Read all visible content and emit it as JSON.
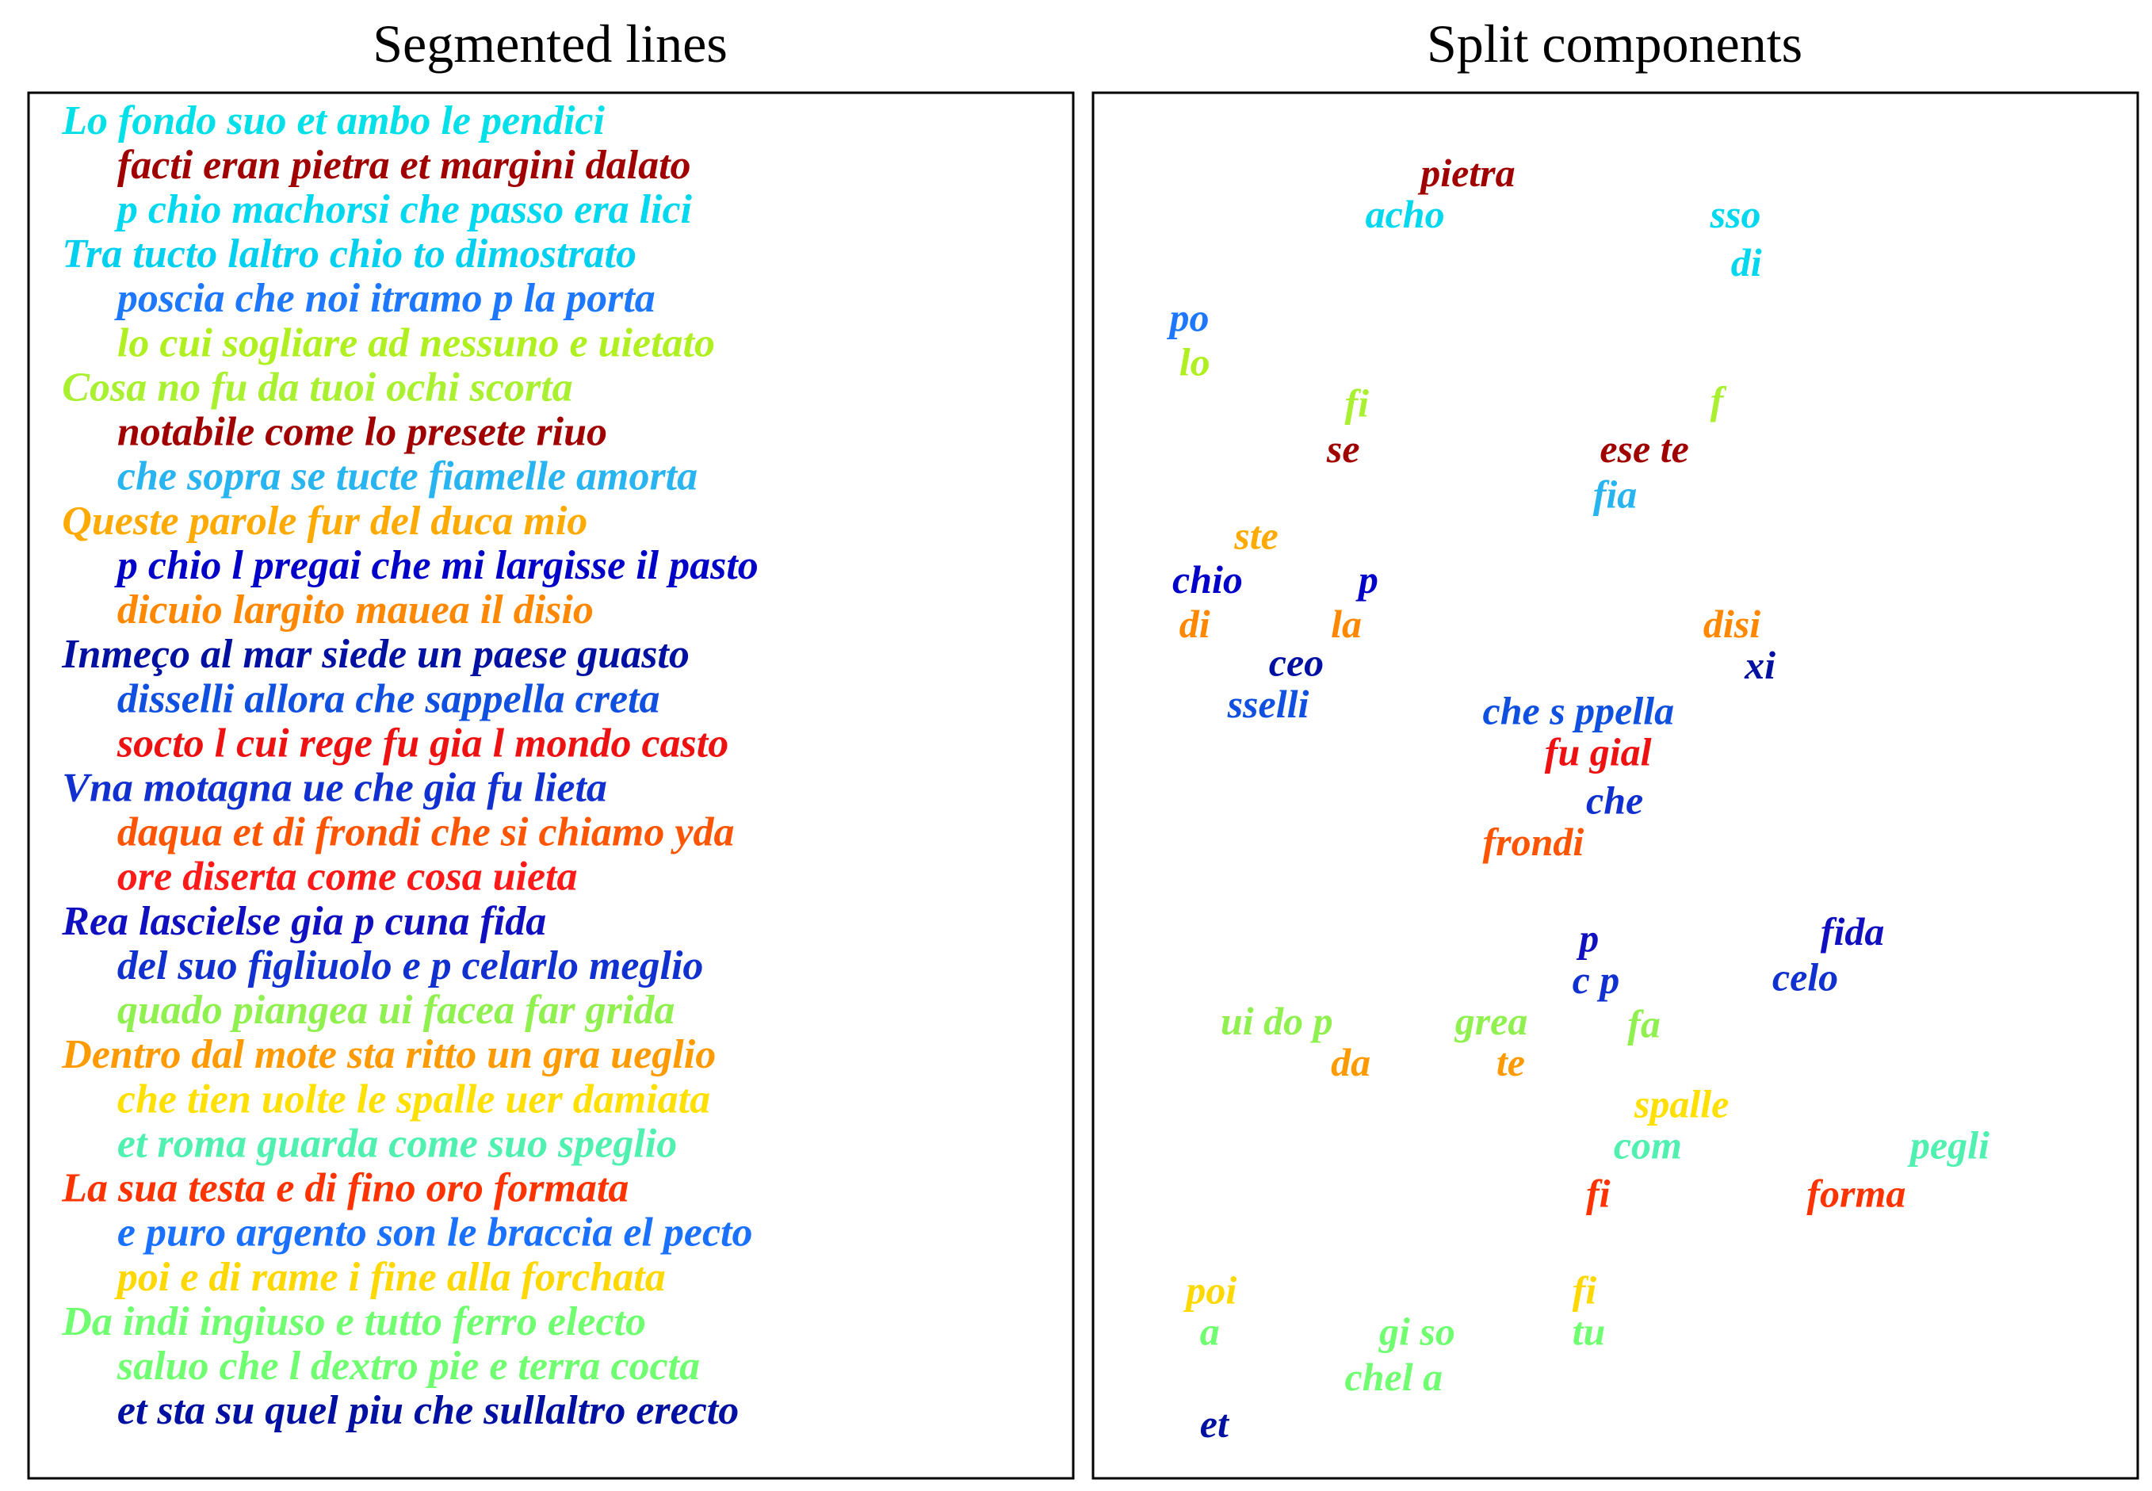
{
  "left": {
    "title": "Segmented lines",
    "lines": [
      {
        "text": "Lo fondo suo et ambo le pendici",
        "color": "#00e0e8"
      },
      {
        "text": "facti eran pietra et margini dalato",
        "color": "#a00000"
      },
      {
        "text": "p chio machorsi che passo era lici",
        "color": "#00d8f0"
      },
      {
        "text": "Tra tucto laltro chio to dimostrato",
        "color": "#00d0f0"
      },
      {
        "text": "poscia che noi itramo p la porta",
        "color": "#1e78ff"
      },
      {
        "text": "lo cui sogliare ad nessuno e uietato",
        "color": "#b0f020"
      },
      {
        "text": "Cosa no fu da tuoi ochi scorta",
        "color": "#a8f030"
      },
      {
        "text": "notabile come lo presete riuo",
        "color": "#a00000"
      },
      {
        "text": "che sopra se tucte fiamelle amorta",
        "color": "#28b4f0"
      },
      {
        "text": "Queste parole fur del duca mio",
        "color": "#ffaa00"
      },
      {
        "text": "p chio l pregai che mi largisse il pasto",
        "color": "#0000c8"
      },
      {
        "text": "dicuio largito mauea il disio",
        "color": "#ff8800"
      },
      {
        "text": "Inmeço al mar siede un paese guasto",
        "color": "#0010a0"
      },
      {
        "text": "disselli allora che sappella creta",
        "color": "#1050e0"
      },
      {
        "text": "socto l cui rege fu gia l mondo casto",
        "color": "#ee1111"
      },
      {
        "text": "Vna motagna ue che gia fu lieta",
        "color": "#1030d0"
      },
      {
        "text": "daqua et di frondi che si chiamo yda",
        "color": "#ff5500"
      },
      {
        "text": "ore diserta come cosa uieta",
        "color": "#ff1a1a"
      },
      {
        "text": "Rea lascielse gia p cuna fida",
        "color": "#1010c0"
      },
      {
        "text": "del suo figliuolo e p celarlo meglio",
        "color": "#1030d0"
      },
      {
        "text": "quado piangea ui facea far grida",
        "color": "#90f050"
      },
      {
        "text": "Dentro dal mote sta ritto un gra ueglio",
        "color": "#ff9a00"
      },
      {
        "text": "che tien uolte le spalle uer damiata",
        "color": "#ffe000"
      },
      {
        "text": "et roma guarda come suo speglio",
        "color": "#50f0b0"
      },
      {
        "text": "La sua testa e di fino oro formata",
        "color": "#ff3300"
      },
      {
        "text": "e puro argento son le braccia el pecto",
        "color": "#1a70ff"
      },
      {
        "text": "poi e di rame i fine alla forchata",
        "color": "#ffd800"
      },
      {
        "text": "Da indi ingiuso e tutto ferro electo",
        "color": "#70ff70"
      },
      {
        "text": "saluo che l dextro pie e terra cocta",
        "color": "#70ff70"
      },
      {
        "text": "et sta su quel piu che sullaltro erecto",
        "color": "#0010a0"
      }
    ]
  },
  "right": {
    "title": "Split components",
    "components": [
      {
        "text": "pietra",
        "color": "#a00000"
      },
      {
        "text": "acho",
        "color": "#00d8f0"
      },
      {
        "text": "sso",
        "color": "#00d8f0"
      },
      {
        "text": "di",
        "color": "#00d8f0"
      },
      {
        "text": "po",
        "color": "#1e78ff"
      },
      {
        "text": "lo",
        "color": "#b0f020"
      },
      {
        "text": "fi",
        "color": "#a8f030"
      },
      {
        "text": "f",
        "color": "#a8f030"
      },
      {
        "text": "se",
        "color": "#a00000"
      },
      {
        "text": "ese te",
        "color": "#a00000"
      },
      {
        "text": "fia",
        "color": "#28b4f0"
      },
      {
        "text": "ste",
        "color": "#ffaa00"
      },
      {
        "text": "chio",
        "color": "#0000c8"
      },
      {
        "text": "p",
        "color": "#0000c8"
      },
      {
        "text": "di",
        "color": "#ff8800"
      },
      {
        "text": "la",
        "color": "#ff8800"
      },
      {
        "text": "disi",
        "color": "#ff8800"
      },
      {
        "text": "ceo",
        "color": "#0010a0"
      },
      {
        "text": "xi",
        "color": "#0010a0"
      },
      {
        "text": "sselli",
        "color": "#1050e0"
      },
      {
        "text": "che s ppella",
        "color": "#1050e0"
      },
      {
        "text": "fu gial",
        "color": "#ee1111"
      },
      {
        "text": "che",
        "color": "#1030d0"
      },
      {
        "text": "frondi",
        "color": "#ff5500"
      },
      {
        "text": "p",
        "color": "#1010c0"
      },
      {
        "text": "fida",
        "color": "#1010c0"
      },
      {
        "text": "c p",
        "color": "#1030d0"
      },
      {
        "text": "celo",
        "color": "#1030d0"
      },
      {
        "text": "ui do p",
        "color": "#90f050"
      },
      {
        "text": "grea",
        "color": "#90f050"
      },
      {
        "text": "fa",
        "color": "#90f050"
      },
      {
        "text": "da",
        "color": "#ff9a00"
      },
      {
        "text": "te",
        "color": "#ff9a00"
      },
      {
        "text": "spalle",
        "color": "#ffe000"
      },
      {
        "text": "com",
        "color": "#50f0b0"
      },
      {
        "text": "pegli",
        "color": "#50f0b0"
      },
      {
        "text": "fi",
        "color": "#ff3300"
      },
      {
        "text": "forma",
        "color": "#ff3300"
      },
      {
        "text": "poi",
        "color": "#ffd800"
      },
      {
        "text": "fi",
        "color": "#ffd800"
      },
      {
        "text": "a",
        "color": "#70ff70"
      },
      {
        "text": "gi so",
        "color": "#70ff70"
      },
      {
        "text": "tu",
        "color": "#70ff70"
      },
      {
        "text": "chel a",
        "color": "#70ff70"
      },
      {
        "text": "et",
        "color": "#0010a0"
      }
    ]
  }
}
